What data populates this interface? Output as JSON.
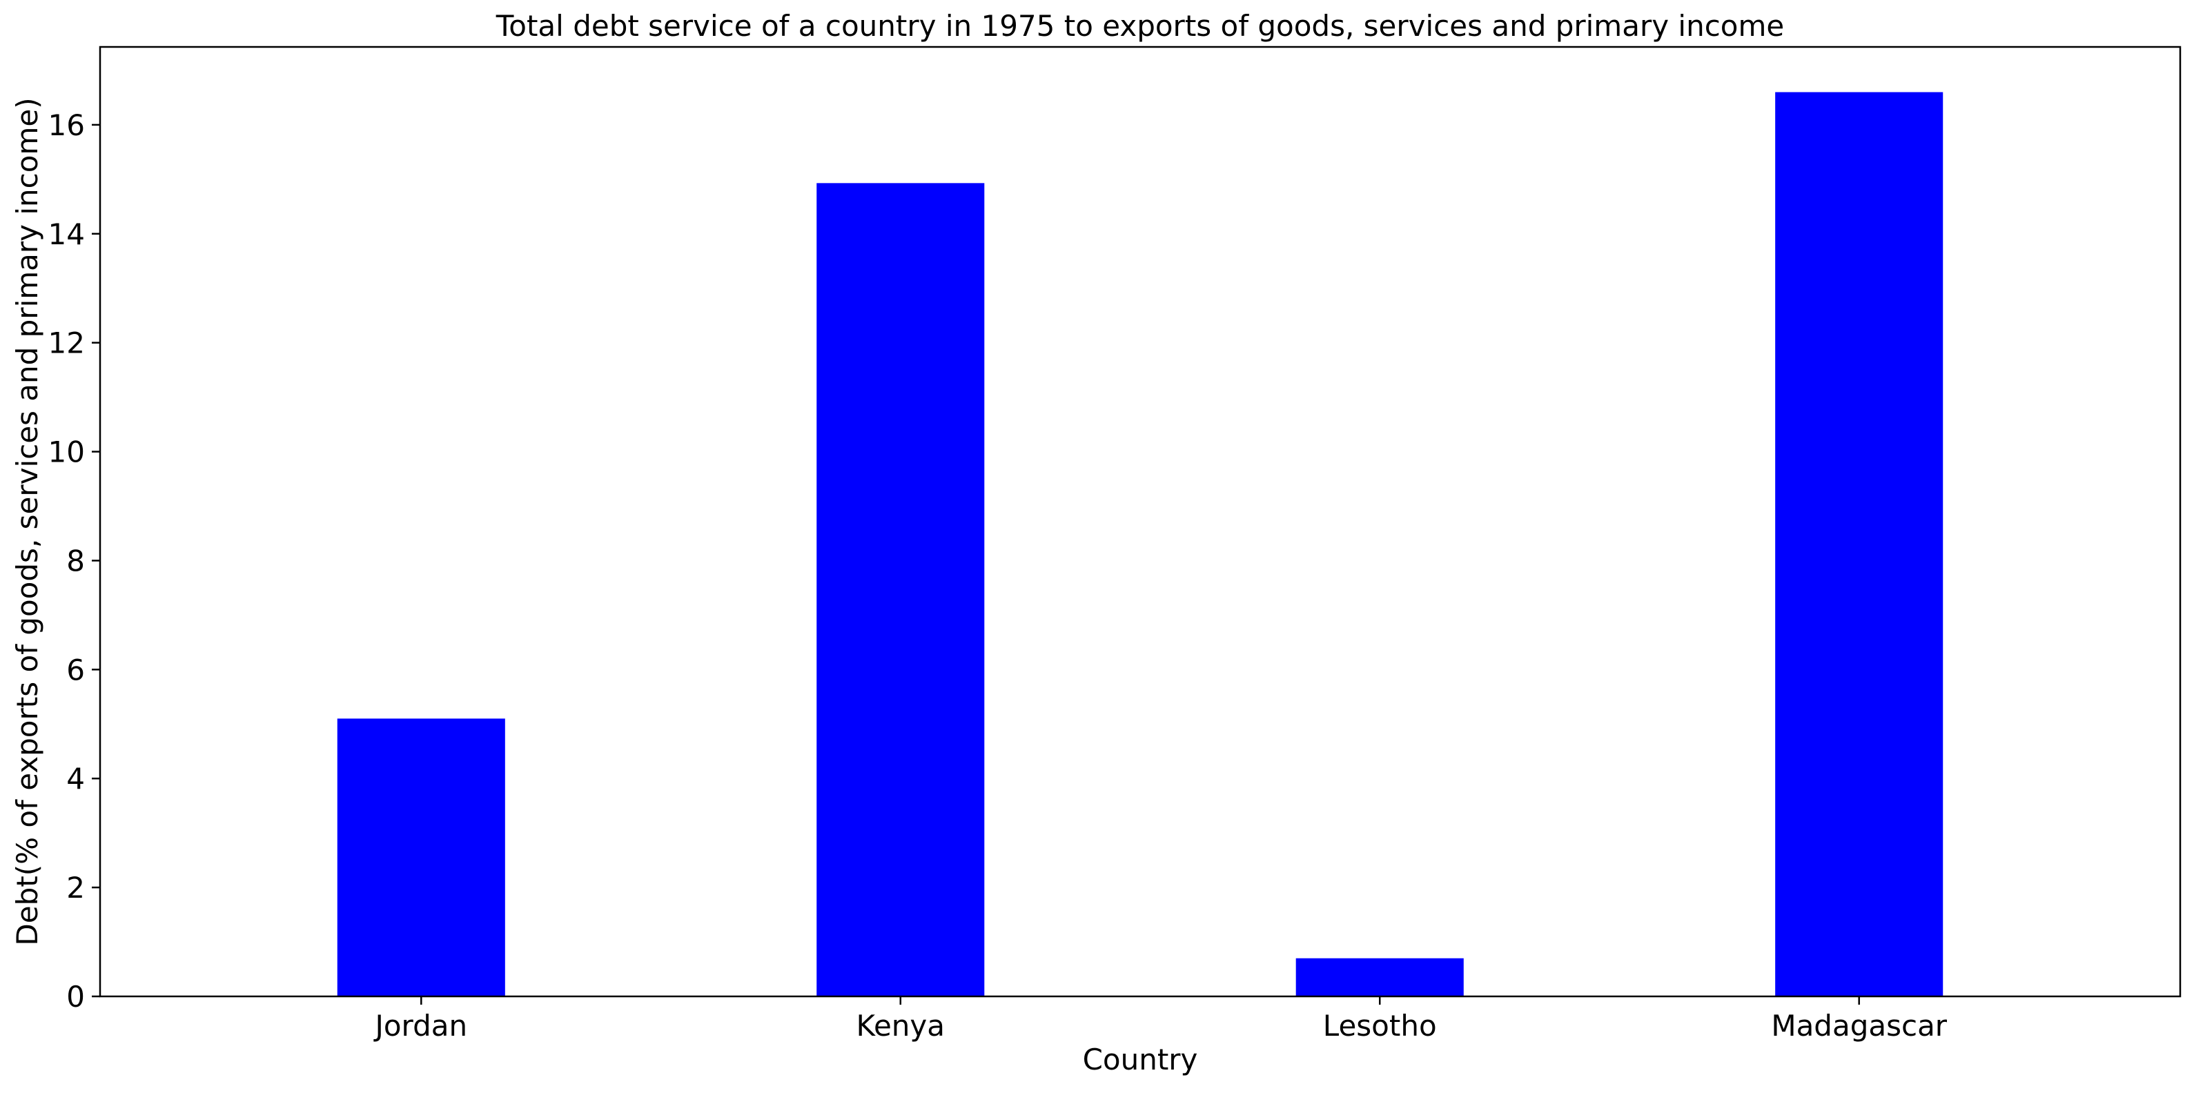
{
  "chart_data": {
    "type": "bar",
    "title": "Total debt service of a country in 1975 to exports of goods, services and primary income",
    "xlabel": "Country",
    "ylabel": "Debt(% of exports of goods, services and primary income)",
    "categories": [
      "Jordan",
      "Kenya",
      "Lesotho",
      "Madagascar"
    ],
    "values": [
      5.1,
      14.93,
      0.7,
      16.6
    ],
    "ylim": [
      0,
      17.43
    ],
    "yticks": [
      0,
      2,
      4,
      6,
      8,
      10,
      12,
      14,
      16
    ],
    "grid": false,
    "legend": "none",
    "bar_color": "#0000ff"
  }
}
